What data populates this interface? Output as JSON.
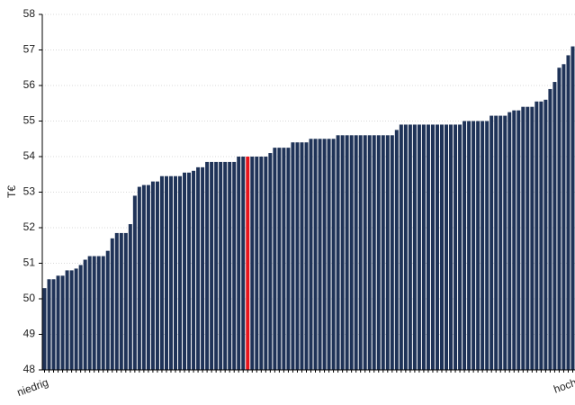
{
  "chart_data": {
    "type": "bar",
    "ylabel": "T€",
    "categories": [
      "niedrig",
      null,
      null,
      null,
      null,
      null,
      null,
      null,
      null,
      null,
      null,
      null,
      null,
      null,
      null,
      null,
      null,
      null,
      null,
      null,
      null,
      null,
      null,
      null,
      null,
      null,
      null,
      null,
      null,
      null,
      null,
      null,
      null,
      null,
      null,
      null,
      null,
      null,
      null,
      null,
      null,
      null,
      null,
      null,
      null,
      null,
      null,
      null,
      null,
      null,
      null,
      null,
      null,
      null,
      null,
      null,
      null,
      null,
      null,
      null,
      null,
      null,
      null,
      null,
      null,
      null,
      null,
      null,
      null,
      null,
      null,
      null,
      null,
      null,
      null,
      null,
      null,
      null,
      null,
      null,
      null,
      null,
      null,
      null,
      null,
      null,
      null,
      null,
      null,
      null,
      null,
      null,
      null,
      null,
      null,
      null,
      null,
      null,
      null,
      null,
      null,
      null,
      null,
      null,
      null,
      null,
      null,
      null,
      null,
      null,
      null,
      null,
      null,
      null,
      null,
      null,
      null,
      "hoch"
    ],
    "values": [
      50.3,
      50.55,
      50.55,
      50.65,
      50.65,
      50.8,
      50.8,
      50.85,
      50.95,
      51.1,
      51.2,
      51.2,
      51.2,
      51.2,
      51.35,
      51.7,
      51.85,
      51.85,
      51.85,
      52.1,
      52.9,
      53.15,
      53.2,
      53.2,
      53.3,
      53.3,
      53.45,
      53.45,
      53.45,
      53.45,
      53.45,
      53.55,
      53.55,
      53.6,
      53.7,
      53.7,
      53.85,
      53.85,
      53.85,
      53.85,
      53.85,
      53.85,
      53.85,
      54.0,
      54.0,
      54.0,
      54.0,
      54.0,
      54.0,
      54.0,
      54.1,
      54.25,
      54.25,
      54.25,
      54.25,
      54.4,
      54.4,
      54.4,
      54.4,
      54.5,
      54.5,
      54.5,
      54.5,
      54.5,
      54.5,
      54.6,
      54.6,
      54.6,
      54.6,
      54.6,
      54.6,
      54.6,
      54.6,
      54.6,
      54.6,
      54.6,
      54.6,
      54.6,
      54.75,
      54.9,
      54.9,
      54.9,
      54.9,
      54.9,
      54.9,
      54.9,
      54.9,
      54.9,
      54.9,
      54.9,
      54.9,
      54.9,
      54.9,
      55.0,
      55.0,
      55.0,
      55.0,
      55.0,
      55.0,
      55.15,
      55.15,
      55.15,
      55.15,
      55.25,
      55.3,
      55.3,
      55.4,
      55.4,
      55.4,
      55.55,
      55.55,
      55.6,
      55.9,
      56.1,
      56.5,
      56.6,
      56.85,
      57.1
    ],
    "color": "#1f3358",
    "highlight": {
      "index": 45,
      "color": "#e8141c"
    },
    "ylim": [
      48,
      58
    ],
    "yticks": [
      48,
      49,
      50,
      51,
      52,
      53,
      54,
      55,
      56,
      57,
      58
    ],
    "grid": true
  }
}
